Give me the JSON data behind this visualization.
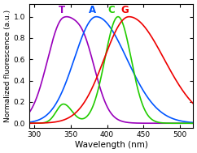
{
  "title": "",
  "xlabel": "Wavelength (nm)",
  "ylabel": "Normalized fluorescence (a.u.)",
  "xlim": [
    293,
    518
  ],
  "ylim": [
    -0.04,
    1.12
  ],
  "xticks": [
    300,
    350,
    400,
    450,
    500
  ],
  "yticks": [
    0.0,
    0.2,
    0.4,
    0.6,
    0.8,
    1.0
  ],
  "T_color": "#9900bb",
  "A_color": "#0055ff",
  "C_color": "#22cc00",
  "G_color": "#ee0000",
  "label_T": [
    "T",
    338,
    1.06
  ],
  "label_A": [
    "A",
    380,
    1.06
  ],
  "label_C": [
    "C",
    406,
    1.06
  ],
  "label_G": [
    "G",
    424,
    1.06
  ],
  "background_color": "#ffffff",
  "figsize": [
    2.42,
    1.89
  ],
  "dpi": 100
}
